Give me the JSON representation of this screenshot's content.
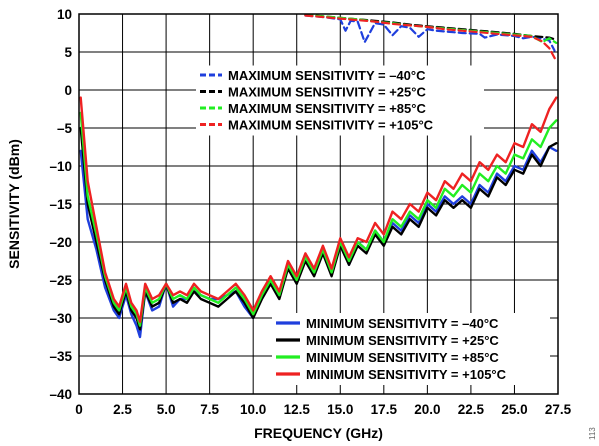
{
  "figure_number": "113",
  "chart_data": {
    "type": "line",
    "title": "",
    "xlabel": "FREQUENCY (GHz)",
    "ylabel": "SENSITIVITY (dBm)",
    "xlim": [
      0,
      27.5
    ],
    "ylim": [
      -40,
      10
    ],
    "xticks": [
      0,
      2.5,
      5,
      7.5,
      10,
      12.5,
      15,
      17.5,
      20,
      22.5,
      25,
      27.5
    ],
    "xtick_labels": [
      "0",
      "2.5",
      "5.0",
      "7.5",
      "10.0",
      "12.5",
      "15.0",
      "17.5",
      "20.0",
      "22.5",
      "25.0",
      "27.5"
    ],
    "yticks": [
      10,
      5,
      0,
      -5,
      -10,
      -15,
      -20,
      -25,
      -30,
      -35,
      -40
    ],
    "ytick_labels": [
      "10",
      "5",
      "0",
      "–5",
      "–10",
      "–15",
      "–20",
      "–25",
      "–30",
      "–35",
      "–40"
    ],
    "grid": true,
    "colors": {
      "m40": "#1f3fdd",
      "p25": "#000000",
      "p85": "#22ee22",
      "p105": "#ee2222"
    },
    "legend_max": {
      "placement": "upper-middle",
      "entries": [
        {
          "label": "MAXIMUM SENSITIVITY = –40°C",
          "color": "#1f3fdd"
        },
        {
          "label": "MAXIMUM SENSITIVITY = +25°C",
          "color": "#000000"
        },
        {
          "label": "MAXIMUM SENSITIVITY = +85°C",
          "color": "#22ee22"
        },
        {
          "label": "MAXIMUM SENSITIVITY = +105°C",
          "color": "#ee2222"
        }
      ]
    },
    "legend_min": {
      "placement": "bottom-right",
      "entries": [
        {
          "label": "MINIMUM SENSITIVITY = –40°C",
          "color": "#1f3fdd"
        },
        {
          "label": "MINIMUM SENSITIVITY = +25°C",
          "color": "#000000"
        },
        {
          "label": "MINIMUM SENSITIVITY = +85°C",
          "color": "#22ee22"
        },
        {
          "label": "MINIMUM SENSITIVITY = +105°C",
          "color": "#ee2222"
        }
      ]
    },
    "x": [
      0.1,
      0.5,
      1.0,
      1.5,
      2.0,
      2.3,
      2.5,
      2.7,
      3.0,
      3.3,
      3.5,
      3.8,
      4.2,
      4.6,
      5.0,
      5.4,
      5.8,
      6.2,
      6.6,
      7.0,
      7.5,
      8.0,
      8.5,
      9.0,
      9.5,
      10.0,
      10.5,
      11.0,
      11.5,
      12.0,
      12.5,
      13.0,
      13.5,
      14.0,
      14.5,
      15.0,
      15.5,
      16.0,
      16.5,
      17.0,
      17.5,
      18.0,
      18.5,
      19.0,
      19.5,
      20.0,
      20.5,
      21.0,
      21.5,
      22.0,
      22.5,
      23.0,
      23.5,
      24.0,
      24.5,
      25.0,
      25.5,
      26.0,
      26.5,
      27.0,
      27.4
    ],
    "series": [
      {
        "name": "MINIMUM SENSITIVITY = –40°C",
        "color": "#1f3fdd",
        "style": "solid",
        "values": [
          -8,
          -17,
          -21,
          -26,
          -29,
          -30,
          -28.5,
          -27,
          -29.5,
          -31,
          -32.5,
          -26.5,
          -29,
          -28.5,
          -25.5,
          -28.5,
          -27.5,
          -27.5,
          -26.5,
          -27,
          -27.5,
          -27.5,
          -27,
          -26.5,
          -28.5,
          -30,
          -27,
          -25.5,
          -27,
          -23,
          -25,
          -22,
          -24,
          -21,
          -24,
          -20,
          -23,
          -20,
          -21,
          -18.5,
          -20,
          -17.5,
          -18.5,
          -16.5,
          -17.5,
          -15,
          -16,
          -14,
          -15,
          -14,
          -15,
          -12.5,
          -13.5,
          -11,
          -12,
          -10,
          -10.5,
          -8,
          -9.5,
          -7.5,
          -8
        ]
      },
      {
        "name": "MINIMUM SENSITIVITY = +25°C",
        "color": "#000000",
        "style": "solid",
        "values": [
          -5,
          -15,
          -20,
          -25,
          -28.5,
          -29.5,
          -28,
          -26.5,
          -29,
          -30,
          -31.5,
          -26.5,
          -28.5,
          -28,
          -25.5,
          -28,
          -27.5,
          -28,
          -26.5,
          -27.5,
          -28,
          -28.5,
          -27.5,
          -26.5,
          -28,
          -30,
          -27.5,
          -25.5,
          -27.5,
          -23.5,
          -25.5,
          -22.5,
          -24.5,
          -21.5,
          -24.5,
          -20.5,
          -23,
          -20.5,
          -21.5,
          -19,
          -20.5,
          -18,
          -19,
          -17,
          -18,
          -15.5,
          -16.5,
          -14.5,
          -15.5,
          -14.5,
          -15.5,
          -13,
          -14,
          -11.5,
          -12.5,
          -10.5,
          -11,
          -8.5,
          -10,
          -7.5,
          -7
        ]
      },
      {
        "name": "MINIMUM SENSITIVITY = +85°C",
        "color": "#22ee22",
        "style": "solid",
        "values": [
          -3,
          -14,
          -19,
          -24.5,
          -28,
          -29,
          -27.5,
          -26,
          -28.5,
          -29.5,
          -31,
          -26,
          -28,
          -27.5,
          -25.5,
          -27.5,
          -27,
          -27.5,
          -26,
          -27,
          -27.5,
          -28,
          -27,
          -26,
          -27.5,
          -29.5,
          -27,
          -25,
          -27,
          -23,
          -25,
          -22,
          -24,
          -21,
          -24,
          -20,
          -22.5,
          -20,
          -21,
          -18.5,
          -20,
          -17,
          -18,
          -16,
          -17,
          -14.5,
          -15.5,
          -13,
          -14,
          -12.5,
          -13.5,
          -11,
          -12,
          -10,
          -11,
          -8.5,
          -9,
          -6.5,
          -7.5,
          -5,
          -4
        ]
      },
      {
        "name": "MINIMUM SENSITIVITY = +105°C",
        "color": "#ee2222",
        "style": "solid",
        "values": [
          -1,
          -12,
          -18,
          -24,
          -27.5,
          -28.5,
          -27,
          -25.5,
          -28,
          -29,
          -30.5,
          -25.5,
          -27.5,
          -27,
          -25.5,
          -27,
          -26.5,
          -27,
          -25.5,
          -26.5,
          -27,
          -27.5,
          -26.5,
          -25.5,
          -27,
          -29,
          -26.5,
          -24.5,
          -26.5,
          -22.5,
          -24.5,
          -21.5,
          -23.5,
          -20.5,
          -23.5,
          -19.5,
          -22,
          -19.5,
          -20,
          -17.5,
          -19,
          -16,
          -17,
          -15,
          -16,
          -13.5,
          -14.5,
          -12,
          -13,
          -11,
          -12,
          -9.5,
          -10.5,
          -8.5,
          -9.5,
          -7,
          -7.5,
          -4.5,
          -5.5,
          -2.5,
          -1
        ]
      },
      {
        "name": "MAXIMUM SENSITIVITY = –40°C",
        "color": "#1f3fdd",
        "style": "dashed",
        "x": [
          13.0,
          14.0,
          15.0,
          15.3,
          15.6,
          16.0,
          16.4,
          17.0,
          17.5,
          18.0,
          18.5,
          19.0,
          19.5,
          20.0,
          20.5,
          21.0,
          21.5,
          22.0,
          23.0,
          23.3,
          24.0,
          25.0,
          25.5,
          26.0,
          26.5,
          27.0,
          27.3
        ],
        "values": [
          9.8,
          9.6,
          9.3,
          7.8,
          9.1,
          9.0,
          6.3,
          8.8,
          8.6,
          7.2,
          8.4,
          8.2,
          7.0,
          8.0,
          7.8,
          7.7,
          7.6,
          7.5,
          7.4,
          6.9,
          7.3,
          7.1,
          6.8,
          7.0,
          6.8,
          6.5,
          5.2
        ]
      },
      {
        "name": "MAXIMUM SENSITIVITY = +25°C",
        "color": "#000000",
        "style": "dashed",
        "x": [
          13.0,
          14.0,
          15.0,
          16.0,
          17.0,
          18.0,
          19.0,
          20.0,
          21.0,
          22.0,
          23.0,
          24.0,
          25.0,
          26.0,
          27.0,
          27.4
        ],
        "values": [
          9.9,
          9.7,
          9.5,
          9.3,
          9.1,
          8.9,
          8.6,
          8.4,
          8.2,
          8.0,
          7.8,
          7.6,
          7.4,
          7.1,
          6.9,
          6.6
        ]
      },
      {
        "name": "MAXIMUM SENSITIVITY = +85°C",
        "color": "#22ee22",
        "style": "dashed",
        "x": [
          13.0,
          14.0,
          15.0,
          16.0,
          17.0,
          18.0,
          19.0,
          20.0,
          21.0,
          22.0,
          23.0,
          24.0,
          25.0,
          26.0,
          26.6,
          27.0,
          27.4
        ],
        "values": [
          9.9,
          9.7,
          9.5,
          9.3,
          9.0,
          8.8,
          8.5,
          8.3,
          8.1,
          7.9,
          7.7,
          7.5,
          7.3,
          7.1,
          6.3,
          6.8,
          6.2
        ]
      },
      {
        "name": "MAXIMUM SENSITIVITY = +105°C",
        "color": "#ee2222",
        "style": "dashed",
        "x": [
          13.0,
          14.0,
          15.0,
          16.0,
          17.0,
          18.0,
          19.0,
          20.0,
          21.0,
          22.0,
          23.0,
          24.0,
          25.0,
          26.0,
          26.6,
          27.0,
          27.4
        ],
        "values": [
          9.8,
          9.6,
          9.4,
          9.2,
          9.0,
          8.7,
          8.5,
          8.3,
          8.0,
          7.8,
          7.6,
          7.4,
          7.2,
          7.0,
          6.4,
          5.5,
          3.8
        ]
      }
    ]
  }
}
